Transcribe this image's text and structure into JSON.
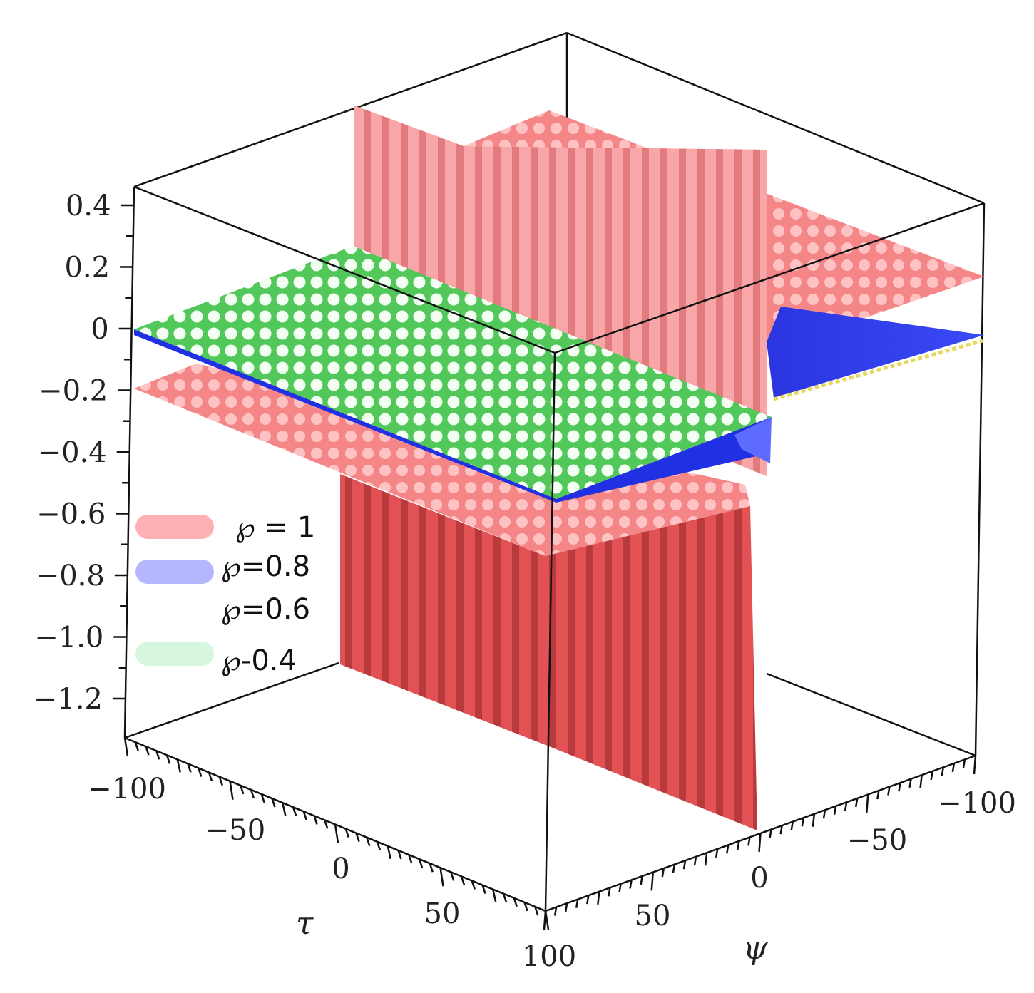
{
  "chart_data": {
    "type": "surface-3d",
    "z_axis": {
      "ticks": [
        "0.4",
        "0.2",
        "0",
        "−0.2",
        "−0.4",
        "−0.6",
        "−0.8",
        "−1.0",
        "−1.2"
      ]
    },
    "x_axis": {
      "label": "τ",
      "ticks": [
        "−100",
        "−50",
        "0",
        "50",
        "100"
      ]
    },
    "y_axis": {
      "label": "ψ",
      "ticks": [
        "0",
        "50",
        "−100",
        "−50"
      ]
    },
    "series": [
      {
        "name": "℘ = 1",
        "color": "#f27a7a",
        "legend_swatch": "#ffb0b4",
        "upper_plateau": 0.4,
        "lower_plateau": -0.2,
        "kink_depth": -1.2
      },
      {
        "name": "℘=0.8",
        "color": "#2020e0",
        "legend_swatch": "#b6b6ff",
        "level": 0.0
      },
      {
        "name": "℘=0.6",
        "color": "#e8e060",
        "legend_swatch": "#ffffff",
        "level": 0.0
      },
      {
        "name": "℘-0.4",
        "color": "#90ee90",
        "legend_swatch": "#d6f7de",
        "level": 0.0
      }
    ],
    "legend_position": "left"
  },
  "colors": {
    "box": "#111111",
    "red_light": "#f7a0a4",
    "red_dark": "#d84848",
    "blue": "#1d2fe8",
    "green": "#aaf0aa"
  }
}
